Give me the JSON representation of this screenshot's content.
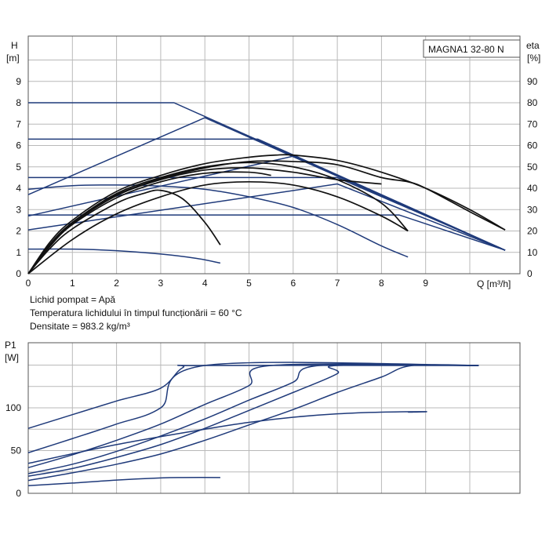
{
  "colors": {
    "curve": "#1f3a7a",
    "dark_curve": "#111111",
    "grid": "#b9b9b9",
    "frame": "#555555",
    "text": "#111111"
  },
  "top_panel": {
    "title_box": "MAGNA1 32-80 N",
    "ylabel_left": [
      "H",
      "[m]"
    ],
    "ylabel_right": [
      "eta",
      "[%]"
    ],
    "xlabel": "Q [m³/h]"
  },
  "notes": [
    "Lichid pompat = Apă",
    "Temperatura lichidului în timpul funcționării = 60 °C",
    "Densitate = 983.2 kg/m³"
  ],
  "bottom_panel": {
    "ylabel": [
      "P1",
      "[W]"
    ]
  },
  "chart_data": [
    {
      "type": "line",
      "panel": "head_and_efficiency",
      "title": "MAGNA1 32-80 N",
      "xlabel": "Q [m³/h]",
      "ylabel": "H [m]",
      "ylabel_right": "eta [%]",
      "xlim": [
        0,
        10.8
      ],
      "ylim": [
        0,
        10
      ],
      "ylim_right": [
        0,
        100
      ],
      "x_ticks": [
        "0",
        "1",
        "2",
        "3",
        "4",
        "5",
        "6",
        "7",
        "8",
        "9"
      ],
      "y_ticks": [
        "0",
        "1",
        "2",
        "3",
        "4",
        "5",
        "6",
        "7",
        "8",
        "9"
      ],
      "y_ticks_right": [
        "0",
        "10",
        "20",
        "30",
        "40",
        "50",
        "60",
        "70",
        "80",
        "90"
      ],
      "grid": true,
      "series": [
        {
          "kind": "head",
          "color": "curve",
          "points": [
            [
              0,
              8.0
            ],
            [
              3.3,
              8.0
            ],
            [
              10.8,
              1.1
            ]
          ]
        },
        {
          "kind": "head",
          "color": "curve",
          "points": [
            [
              0,
              3.7
            ],
            [
              4.0,
              7.3
            ],
            [
              10.8,
              1.1
            ]
          ]
        },
        {
          "kind": "head",
          "color": "curve",
          "points": [
            [
              0,
              6.3
            ],
            [
              5.2,
              6.3
            ],
            [
              10.8,
              1.1
            ]
          ]
        },
        {
          "kind": "head",
          "color": "curve",
          "points": [
            [
              0,
              4.5
            ],
            [
              7.0,
              4.5
            ],
            [
              10.8,
              1.1
            ]
          ]
        },
        {
          "kind": "head",
          "color": "curve",
          "points": [
            [
              0,
              2.75
            ],
            [
              8.4,
              2.75
            ],
            [
              10.8,
              1.1
            ]
          ]
        },
        {
          "kind": "head",
          "color": "curve",
          "points": [
            [
              0,
              2.05
            ],
            [
              7.0,
              4.2
            ],
            [
              10.8,
              1.1
            ]
          ]
        },
        {
          "kind": "head",
          "color": "curve",
          "points": [
            [
              0,
              2.7
            ],
            [
              6.0,
              5.5
            ],
            [
              10.8,
              1.1
            ]
          ]
        },
        {
          "kind": "head",
          "color": "curve",
          "points": [
            [
              0,
              3.95
            ],
            [
              1.0,
              4.12
            ],
            [
              2.0,
              4.15
            ],
            [
              3.0,
              4.1
            ],
            [
              4.0,
              3.95
            ],
            [
              5.0,
              3.6
            ],
            [
              6.0,
              3.1
            ],
            [
              7.0,
              2.3
            ],
            [
              8.0,
              1.3
            ],
            [
              8.6,
              0.78
            ]
          ]
        },
        {
          "kind": "head",
          "color": "curve",
          "points": [
            [
              0,
              1.15
            ],
            [
              1.0,
              1.15
            ],
            [
              2.0,
              1.08
            ],
            [
              3.0,
              0.92
            ],
            [
              3.8,
              0.72
            ],
            [
              4.35,
              0.5
            ]
          ]
        },
        {
          "kind": "efficiency",
          "color": "dark_curve",
          "points": [
            [
              0,
              0
            ],
            [
              0.5,
              14
            ],
            [
              1.0,
              24
            ],
            [
              1.5,
              31
            ],
            [
              2.0,
              37
            ],
            [
              3.0,
              44.5
            ],
            [
              4.0,
              49.5
            ],
            [
              5.0,
              52.5
            ],
            [
              6.0,
              52.5
            ],
            [
              7.0,
              51
            ],
            [
              8.0,
              45
            ],
            [
              8.6,
              43
            ],
            [
              9.0,
              40
            ],
            [
              10.0,
              29
            ],
            [
              10.8,
              20.5
            ]
          ]
        },
        {
          "kind": "efficiency",
          "color": "dark_curve",
          "points": [
            [
              0,
              0
            ],
            [
              0.5,
              15
            ],
            [
              1.0,
              25
            ],
            [
              2.0,
              38.5
            ],
            [
              3.0,
              46
            ],
            [
              4.0,
              51.5
            ],
            [
              5.0,
              54.5
            ],
            [
              5.6,
              55.5
            ],
            [
              6.0,
              55.5
            ],
            [
              7.0,
              53
            ],
            [
              8.0,
              47.5
            ],
            [
              9.0,
              40
            ],
            [
              10.0,
              30
            ],
            [
              10.8,
              20.5
            ]
          ]
        },
        {
          "kind": "efficiency",
          "color": "dark_curve",
          "points": [
            [
              0,
              0
            ],
            [
              0.5,
              14
            ],
            [
              1.0,
              24
            ],
            [
              2.0,
              37.5
            ],
            [
              3.0,
              45
            ],
            [
              4.0,
              50
            ],
            [
              5.0,
              52
            ],
            [
              6.0,
              50
            ],
            [
              7.0,
              44
            ],
            [
              8.0,
              33
            ],
            [
              8.6,
              20
            ]
          ]
        },
        {
          "kind": "efficiency",
          "color": "dark_curve",
          "points": [
            [
              0,
              0
            ],
            [
              0.5,
              13.5
            ],
            [
              1.0,
              23.5
            ],
            [
              2.0,
              36.5
            ],
            [
              3.0,
              44
            ],
            [
              4.0,
              48.5
            ],
            [
              5.0,
              49.5
            ],
            [
              6.0,
              47.5
            ],
            [
              7.0,
              44
            ],
            [
              8.0,
              42
            ]
          ]
        },
        {
          "kind": "efficiency",
          "color": "dark_curve",
          "points": [
            [
              0,
              0
            ],
            [
              0.5,
              13
            ],
            [
              1.0,
              23
            ],
            [
              2.0,
              35.5
            ],
            [
              3.0,
              43
            ],
            [
              4.0,
              47
            ],
            [
              5.0,
              47.5
            ],
            [
              5.5,
              46
            ]
          ]
        },
        {
          "kind": "efficiency",
          "color": "dark_curve",
          "points": [
            [
              0,
              0
            ],
            [
              0.5,
              12
            ],
            [
              1.0,
              21
            ],
            [
              2.0,
              33
            ],
            [
              2.6,
              37.5
            ],
            [
              3.0,
              39
            ],
            [
              3.5,
              35
            ],
            [
              4.0,
              24
            ],
            [
              4.35,
              13.5
            ]
          ]
        },
        {
          "kind": "efficiency",
          "color": "dark_curve",
          "points": [
            [
              0,
              0
            ],
            [
              1.0,
              16
            ],
            [
              2.0,
              28
            ],
            [
              3.0,
              36
            ],
            [
              4.0,
              41.5
            ],
            [
              5.0,
              43
            ],
            [
              6.0,
              41.5
            ],
            [
              7.0,
              36
            ],
            [
              8.0,
              27
            ],
            [
              8.6,
              20
            ]
          ]
        }
      ]
    },
    {
      "type": "line",
      "panel": "power",
      "xlabel": "",
      "ylabel": "P1 [W]",
      "xlim": [
        0,
        10.8
      ],
      "ylim": [
        0,
        150
      ],
      "y_ticks": [
        "0",
        "50",
        "100"
      ],
      "grid": true,
      "series": [
        {
          "color": "curve",
          "points": [
            [
              0,
              76
            ],
            [
              1.0,
              92
            ],
            [
              2.0,
              108
            ],
            [
              3.0,
              123
            ],
            [
              3.5,
              147
            ],
            [
              4.0,
              149.5
            ],
            [
              10.2,
              149.5
            ]
          ]
        },
        {
          "color": "curve",
          "points": [
            [
              0,
              47.5
            ],
            [
              1.0,
              64
            ],
            [
              2.0,
              81
            ],
            [
              3.0,
              100
            ],
            [
              4.0,
              149.5
            ],
            [
              10.2,
              149.5
            ]
          ]
        },
        {
          "color": "curve",
          "points": [
            [
              0,
              30
            ],
            [
              1.0,
              45
            ],
            [
              2.0,
              62
            ],
            [
              3.0,
              81
            ],
            [
              4.0,
              104
            ],
            [
              5.0,
              126
            ],
            [
              5.5,
              149.5
            ],
            [
              10.2,
              149.5
            ]
          ]
        },
        {
          "color": "curve",
          "points": [
            [
              0,
              23
            ],
            [
              1.0,
              34
            ],
            [
              2.0,
              49
            ],
            [
              3.0,
              67
            ],
            [
              4.0,
              87
            ],
            [
              5.0,
              109
            ],
            [
              6.0,
              130
            ],
            [
              6.6,
              149.5
            ],
            [
              10.2,
              149.5
            ]
          ]
        },
        {
          "color": "curve",
          "points": [
            [
              0,
              20
            ],
            [
              1.0,
              29
            ],
            [
              2.0,
              42
            ],
            [
              3.0,
              57
            ],
            [
              4.0,
              76
            ],
            [
              5.0,
              97
            ],
            [
              6.0,
              118
            ],
            [
              7.0,
              140
            ],
            [
              7.0,
              149.5
            ],
            [
              10.2,
              149.5
            ]
          ]
        },
        {
          "color": "curve",
          "points": [
            [
              0,
              15
            ],
            [
              1.0,
              24
            ],
            [
              2.0,
              34
            ],
            [
              3.0,
              46
            ],
            [
              4.0,
              62
            ],
            [
              5.0,
              80
            ],
            [
              6.0,
              98
            ],
            [
              7.0,
              118
            ],
            [
              8.0,
              136
            ],
            [
              8.7,
              149.5
            ],
            [
              10.2,
              149.5
            ]
          ]
        },
        {
          "color": "curve",
          "points": [
            [
              0,
              35
            ],
            [
              2.0,
              57
            ],
            [
              4.0,
              75
            ],
            [
              5.0,
              83
            ],
            [
              6.0,
              89
            ],
            [
              7.0,
              93
            ],
            [
              8.0,
              95
            ],
            [
              9.0,
              95.5
            ],
            [
              8.7,
              95
            ],
            [
              8.6,
              95
            ]
          ]
        },
        {
          "color": "curve",
          "points": [
            [
              0,
              9
            ],
            [
              1.0,
              12
            ],
            [
              2.0,
              15.5
            ],
            [
              3.0,
              18
            ],
            [
              3.5,
              18.5
            ],
            [
              4.35,
              18.5
            ]
          ]
        }
      ]
    }
  ]
}
